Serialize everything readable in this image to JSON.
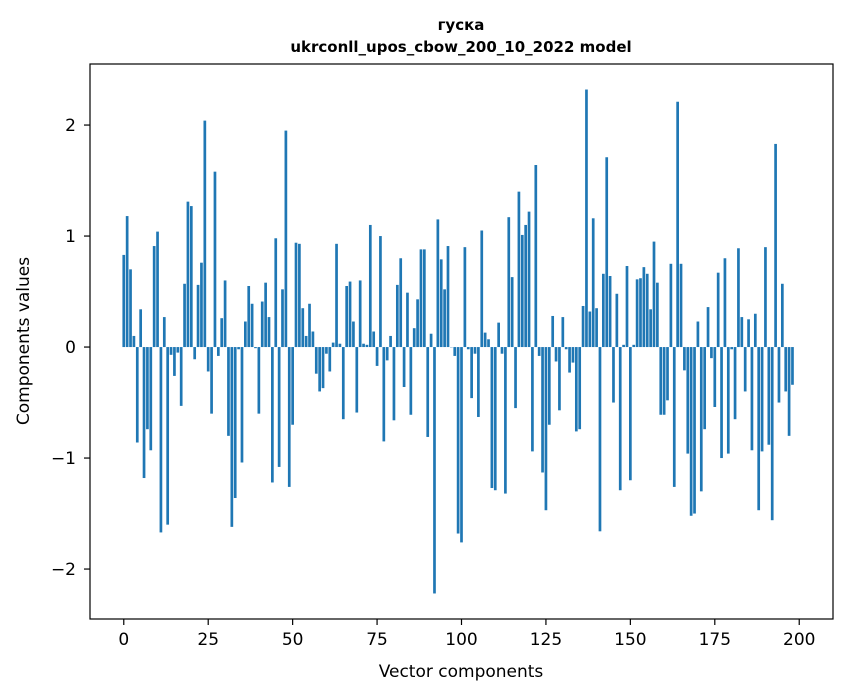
{
  "chart_data": {
    "type": "bar",
    "title_line1": "гуска",
    "title_line2": "ukrconll_upos_cbow_200_10_2022 model",
    "xlabel": "Vector components",
    "ylabel": "Components values",
    "xlim": [
      -10,
      210
    ],
    "ylim": [
      -2.45,
      2.55
    ],
    "x_ticks": [
      0,
      25,
      50,
      75,
      100,
      125,
      150,
      175,
      200
    ],
    "y_ticks": [
      -2,
      -1,
      0,
      1,
      2
    ],
    "y_tick_labels": [
      "−2",
      "−1",
      "0",
      "1",
      "2"
    ],
    "grid": false,
    "bar_color": "#1f77b4",
    "values": [
      0.83,
      1.18,
      0.7,
      0.1,
      -0.86,
      0.34,
      -1.18,
      -0.74,
      -0.93,
      0.91,
      1.04,
      -1.67,
      0.27,
      -1.6,
      -0.07,
      -0.26,
      -0.05,
      -0.53,
      0.57,
      1.31,
      1.27,
      -0.11,
      0.56,
      0.76,
      2.04,
      -0.22,
      -0.6,
      1.58,
      -0.08,
      0.26,
      0.6,
      -0.8,
      -1.62,
      -1.36,
      -0.02,
      -1.04,
      0.23,
      0.55,
      0.39,
      -0.01,
      -0.6,
      0.41,
      0.58,
      0.27,
      -1.22,
      0.98,
      -1.08,
      0.52,
      1.95,
      -1.26,
      -0.7,
      0.94,
      0.93,
      0.35,
      0.1,
      0.39,
      0.14,
      -0.24,
      -0.4,
      -0.37,
      -0.06,
      -0.22,
      0.04,
      0.93,
      0.03,
      -0.65,
      0.55,
      0.59,
      0.23,
      -0.59,
      0.6,
      0.03,
      0.02,
      1.1,
      0.14,
      -0.17,
      1.0,
      -0.85,
      -0.12,
      0.1,
      -0.66,
      0.56,
      0.8,
      -0.36,
      0.49,
      -0.61,
      0.17,
      0.43,
      0.88,
      0.88,
      -0.81,
      0.12,
      -2.22,
      1.15,
      0.79,
      0.52,
      0.91,
      0.0,
      -0.08,
      -1.68,
      -1.76,
      0.9,
      -0.02,
      -0.46,
      -0.06,
      -0.63,
      1.05,
      0.13,
      0.07,
      -1.27,
      -1.29,
      0.22,
      -0.06,
      -1.32,
      1.17,
      0.63,
      -0.55,
      1.4,
      1.01,
      1.1,
      1.22,
      -0.94,
      1.64,
      -0.08,
      -1.13,
      -1.47,
      -0.7,
      0.28,
      -0.13,
      -0.57,
      0.27,
      -0.02,
      -0.23,
      -0.14,
      -0.76,
      -0.74,
      0.37,
      2.32,
      0.32,
      1.16,
      0.35,
      -1.66,
      0.66,
      1.71,
      0.64,
      -0.5,
      0.48,
      -1.29,
      0.02,
      0.73,
      -1.2,
      0.02,
      0.61,
      0.62,
      0.72,
      0.66,
      0.34,
      0.95,
      0.58,
      -0.61,
      -0.61,
      -0.48,
      0.75,
      -1.26,
      2.21,
      0.75,
      -0.21,
      -0.96,
      -1.52,
      -1.5,
      0.23,
      -1.3,
      -0.74,
      0.36,
      -0.1,
      -0.54,
      0.67,
      -1.0,
      0.8,
      -0.96,
      -0.02,
      -0.65,
      0.89,
      0.27,
      -0.4,
      0.25,
      -0.93,
      0.3,
      -1.47,
      -0.94,
      0.9,
      -0.88,
      -1.56,
      1.83,
      -0.5,
      0.57,
      -0.4,
      -0.8,
      -0.34
    ]
  }
}
